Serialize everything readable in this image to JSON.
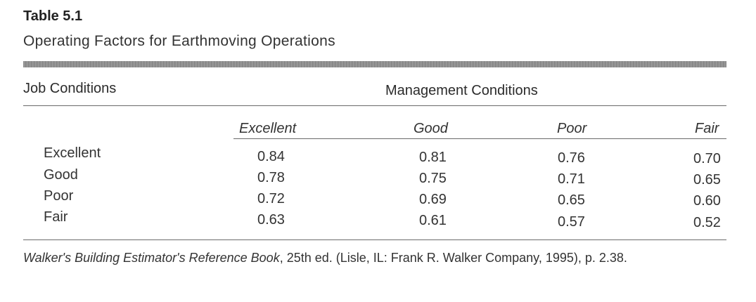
{
  "table": {
    "label": "Table 5.1",
    "title": "Operating Factors for Earthmoving Operations",
    "row_header": "Job Conditions",
    "column_group_header": "Management Conditions",
    "columns": [
      "Excellent",
      "Good",
      "Poor",
      "Fair"
    ],
    "rows": [
      {
        "label": "Excellent",
        "values": [
          "0.84",
          "0.81",
          "0.76",
          "0.70"
        ]
      },
      {
        "label": "Good",
        "values": [
          "0.78",
          "0.75",
          "0.71",
          "0.65"
        ]
      },
      {
        "label": "Poor",
        "values": [
          "0.72",
          "0.69",
          "0.65",
          "0.60"
        ]
      },
      {
        "label": "Fair",
        "values": [
          "0.63",
          "0.61",
          "0.57",
          "0.52"
        ]
      }
    ]
  },
  "source": {
    "book_title": "Walker's Building Estimator's Reference Book",
    "details": ", 25th ed. (Lisle, IL: Frank R. Walker Company, 1995), p. 2.38."
  }
}
